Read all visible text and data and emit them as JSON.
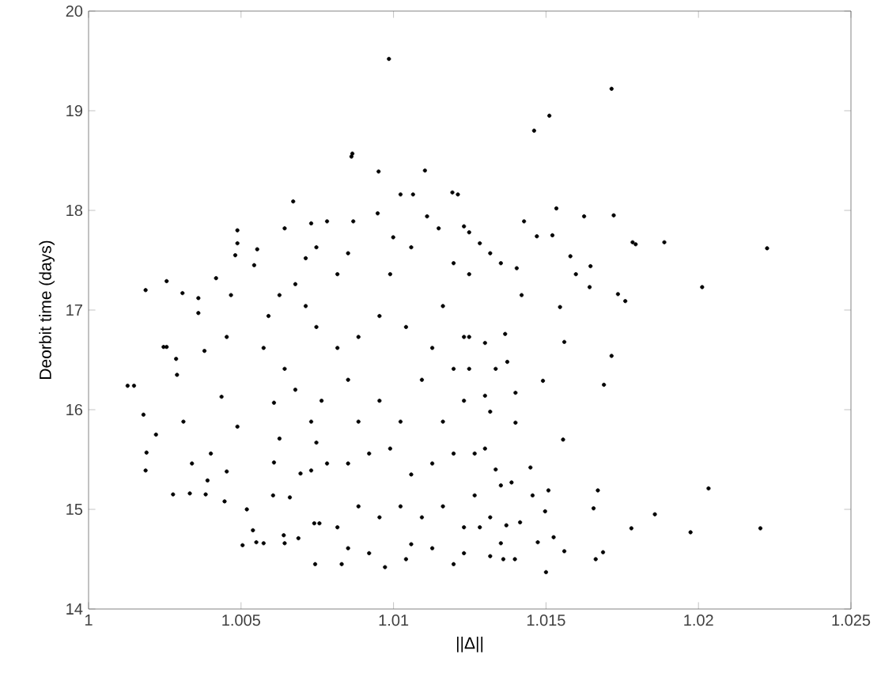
{
  "chart_data": {
    "type": "scatter",
    "xlabel": "||Δ||",
    "ylabel": "Deorbit time (days)",
    "xlim": [
      1,
      1.025
    ],
    "ylim": [
      14,
      20
    ],
    "xticks": [
      1,
      1.005,
      1.01,
      1.015,
      1.02,
      1.025
    ],
    "yticks": [
      14,
      15,
      16,
      17,
      18,
      19,
      20
    ],
    "series": [
      {
        "color": "#000000",
        "x": [
          1.01715,
          1.01511,
          1.01461,
          1.01534,
          1.01625,
          1.01722,
          1.01784,
          1.01794,
          1.01888,
          1.02225,
          1.02012,
          1.01736,
          1.0176,
          1.01646,
          1.01643,
          1.01598,
          1.0158,
          1.01546,
          1.0156,
          1.01715,
          1.0169,
          1.0149,
          1.01556,
          1.02033,
          1.0167,
          1.01656,
          1.01857,
          1.0178,
          1.01974,
          1.02203,
          1.015,
          1.01687,
          1.01663,
          1.0156,
          1.01525,
          1.01473,
          1.01497,
          1.01508,
          1.01449,
          1.01456,
          1.014,
          1.014,
          1.01366,
          1.01373,
          1.0147,
          1.01428,
          1.01521,
          1.01404,
          1.0142,
          1.00985,
          1.00865,
          1.00862,
          1.00951,
          1.01103,
          1.01193,
          1.01211,
          1.00671,
          1.01023,
          1.01064,
          1.00128,
          1.00149,
          1.00187,
          1.00256,
          1.00246,
          1.0018,
          1.0019,
          1.00187,
          1.00221,
          1.00277,
          1.00256,
          1.00308,
          1.00287,
          1.0029,
          1.00311,
          1.00339,
          1.00332,
          1.00384,
          1.0039,
          1.0038,
          1.0036,
          1.0036,
          1.00418,
          1.00481,
          1.00488,
          1.00488,
          1.00553,
          1.00543,
          1.00467,
          1.00453,
          1.00436,
          1.00488,
          1.00453,
          1.00446,
          1.00401,
          1.00519,
          1.00539,
          1.0055,
          1.00574,
          1.0064,
          1.00643,
          1.00688,
          1.00743,
          1.0074,
          1.00757,
          1.00605,
          1.0066,
          1.00608,
          1.00695,
          1.0073,
          1.00626,
          1.00608,
          1.00643,
          1.00574,
          1.0059,
          1.00626,
          1.00678,
          1.00643,
          1.00712,
          1.00747,
          1.00782,
          1.0073,
          1.00816,
          1.00851,
          1.00868,
          1.00948,
          1.00999,
          1.00989,
          1.01058,
          1.0111,
          1.01148,
          1.01231,
          1.01197,
          1.01162,
          1.01127,
          1.01197,
          1.01231,
          1.01093,
          1.01041,
          1.00954,
          1.00885,
          1.00816,
          1.00747,
          1.00712,
          1.00851,
          1.00764,
          1.0073,
          1.00678,
          1.00885,
          1.00954,
          1.01023,
          1.00989,
          1.0092,
          1.00851,
          1.00782,
          1.00747,
          1.01058,
          1.01127,
          1.01197,
          1.01162,
          1.01231,
          1.00885,
          1.00954,
          1.01023,
          1.01093,
          1.01162,
          1.01231,
          1.00816,
          1.00851,
          1.0092,
          1.00972,
          1.01041,
          1.01127,
          1.01197,
          1.01058,
          1.0083,
          1.00505,
          1.01248,
          1.01283,
          1.01317,
          1.01352,
          1.01248,
          1.01248,
          1.013,
          1.01335,
          1.01248,
          1.013,
          1.01317,
          1.01266,
          1.013,
          1.01266,
          1.01335,
          1.01352,
          1.01387,
          1.01317,
          1.01283,
          1.0137,
          1.01231,
          1.01317,
          1.0136,
          1.01398,
          1.01415,
          1.01352
        ],
        "values": [
          19.22,
          18.95,
          18.8,
          18.02,
          17.94,
          17.95,
          17.68,
          17.66,
          17.68,
          17.62,
          17.23,
          17.16,
          17.09,
          17.44,
          17.23,
          17.36,
          17.54,
          17.03,
          16.68,
          16.54,
          16.25,
          16.29,
          15.7,
          15.21,
          15.19,
          15.01,
          14.95,
          14.81,
          14.77,
          14.81,
          14.37,
          14.57,
          14.5,
          14.58,
          14.72,
          14.67,
          14.98,
          15.19,
          15.42,
          15.14,
          15.87,
          16.17,
          16.76,
          16.48,
          17.74,
          17.89,
          17.75,
          17.42,
          17.15,
          19.52,
          18.57,
          18.54,
          18.39,
          18.4,
          18.18,
          18.16,
          18.09,
          18.16,
          18.16,
          16.24,
          16.24,
          17.2,
          16.63,
          16.63,
          15.95,
          15.57,
          15.39,
          15.75,
          15.15,
          17.29,
          17.17,
          16.51,
          16.35,
          15.88,
          15.46,
          15.16,
          15.15,
          15.29,
          16.59,
          16.97,
          17.12,
          17.32,
          17.55,
          17.8,
          17.67,
          17.61,
          17.45,
          17.15,
          16.73,
          16.13,
          15.83,
          15.38,
          15.08,
          15.56,
          15.0,
          14.79,
          14.67,
          14.66,
          14.74,
          14.66,
          14.71,
          14.45,
          14.86,
          14.86,
          15.14,
          15.12,
          15.47,
          15.36,
          15.39,
          15.71,
          16.07,
          16.41,
          16.62,
          16.94,
          17.15,
          17.26,
          17.82,
          17.52,
          17.63,
          17.89,
          17.87,
          17.36,
          17.57,
          17.89,
          17.97,
          17.73,
          17.36,
          17.63,
          17.94,
          17.82,
          17.84,
          17.47,
          17.04,
          16.62,
          16.41,
          16.73,
          16.3,
          16.83,
          16.94,
          16.73,
          16.62,
          16.83,
          17.04,
          16.3,
          16.09,
          15.88,
          16.2,
          15.88,
          16.09,
          15.88,
          15.61,
          15.56,
          15.46,
          15.46,
          15.67,
          15.35,
          15.46,
          15.56,
          15.88,
          16.09,
          15.03,
          14.92,
          15.03,
          14.92,
          15.03,
          14.82,
          14.82,
          14.61,
          14.56,
          14.42,
          14.5,
          14.61,
          14.45,
          14.65,
          14.45,
          14.64,
          17.36,
          17.67,
          17.57,
          17.47,
          17.78,
          16.73,
          16.67,
          16.41,
          16.41,
          16.14,
          15.98,
          15.56,
          15.61,
          15.14,
          15.4,
          15.24,
          15.27,
          14.92,
          14.82,
          14.84,
          14.56,
          14.53,
          14.5,
          14.5,
          14.87,
          14.66
        ]
      }
    ]
  }
}
